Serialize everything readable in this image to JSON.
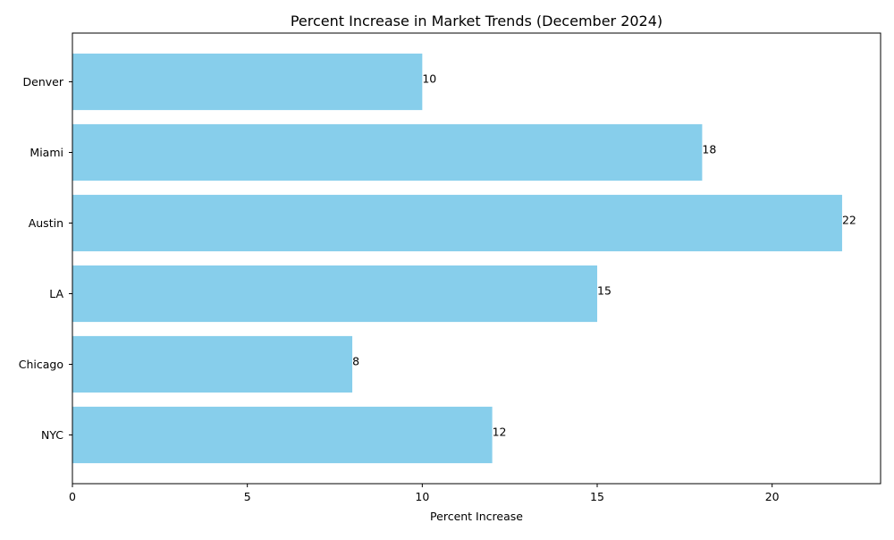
{
  "chart_data": {
    "type": "bar",
    "orientation": "horizontal",
    "title": "Percent Increase in Market Trends (December 2024)",
    "xlabel": "Percent Increase",
    "ylabel": "",
    "categories": [
      "NYC",
      "Chicago",
      "LA",
      "Austin",
      "Miami",
      "Denver"
    ],
    "values": [
      12,
      8,
      15,
      22,
      18,
      10
    ],
    "xlim": [
      0,
      23.1
    ],
    "xticks": [
      0,
      5,
      10,
      15,
      20
    ],
    "grid": false,
    "legend": "none",
    "bar_color": "#87CEEB"
  }
}
